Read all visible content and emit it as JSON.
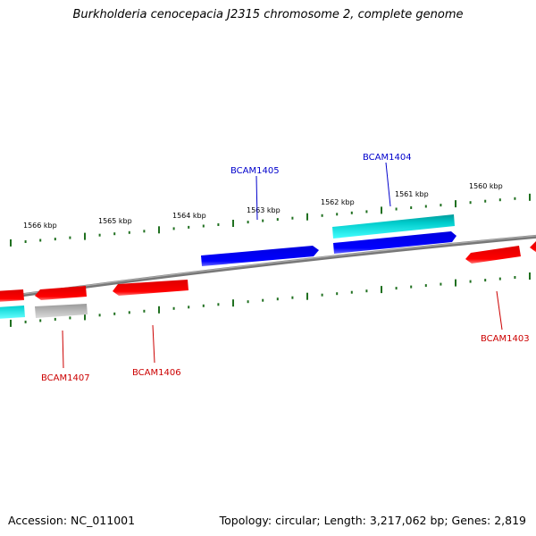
{
  "header": {
    "title": "Burkholderia cenocepacia J2315 chromosome 2, complete genome"
  },
  "footer": {
    "accession": "Accession: NC_011001",
    "summary": "Topology: circular; Length: 3,217,062 bp; Genes: 2,819"
  },
  "ruler": {
    "labels": [
      "1566 kbp",
      "1565 kbp",
      "1564 kbp",
      "1563 kbp",
      "1562 kbp",
      "1561 kbp",
      "1560 kbp"
    ]
  },
  "genes": {
    "labels": [
      {
        "id": "BCAM1405",
        "text": "BCAM1405",
        "color": "#0000cc",
        "strand": "forward"
      },
      {
        "id": "BCAM1404",
        "text": "BCAM1404",
        "color": "#0000cc",
        "strand": "forward"
      },
      {
        "id": "BCAM1407",
        "text": "BCAM1407",
        "color": "#cc0000",
        "strand": "reverse"
      },
      {
        "id": "BCAM1406",
        "text": "BCAM1406",
        "color": "#cc0000",
        "strand": "reverse"
      },
      {
        "id": "BCAM1403",
        "text": "BCAM1403",
        "color": "#cc0000",
        "strand": "reverse"
      }
    ]
  },
  "colors": {
    "forward_cds": "#0000ee",
    "reverse_cds": "#ee0000",
    "forward_rna": "#00cccc",
    "reverse_rna": "#00dddd",
    "other": "#aaaaaa",
    "backbone": "#808080",
    "ticks": "#207020"
  }
}
